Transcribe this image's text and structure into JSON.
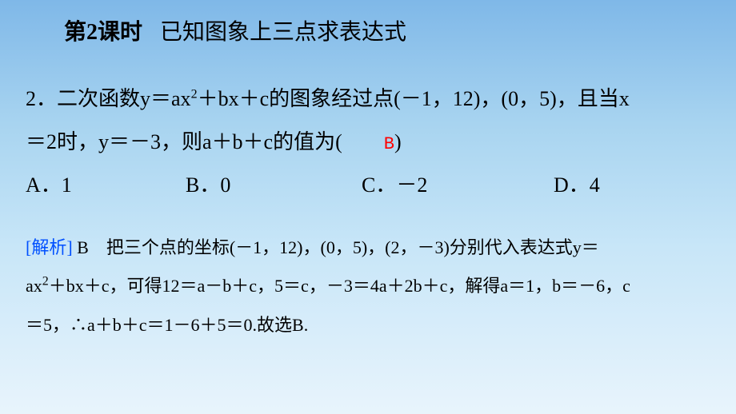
{
  "header": {
    "lesson_label": "第2课时",
    "lesson_title": "已知图象上三点求表达式"
  },
  "question": {
    "number": "2．",
    "text_part1": "二次函数y＝ax",
    "sup1": "2",
    "text_part2": "＋bx＋c的图象经过点(－1，12)，(0，5)，且当x",
    "text_line2": "＝2时，y＝－3，则a＋b＋c的值为(　　",
    "answer": "B",
    "text_close": ")"
  },
  "options": {
    "a": "A．1",
    "b": "B．0",
    "c": "C．－2",
    "d": "D．4"
  },
  "explanation": {
    "label": "[解析]",
    "letter": " B　",
    "text_part1": "把三个点的坐标(－1，12)，(0，5)，(2，－3)分别代入表达式y＝",
    "text_line2_pre": "ax",
    "sup": "2",
    "text_line2_post": "＋bx＋c，可得12＝a－b＋c，5＝c，－3＝4a＋2b＋c，解得a＝1，b＝－6，c",
    "text_line3": "＝5，∴a＋b＋c＝1－6＋5＝0.故选B."
  },
  "colors": {
    "gradient_top": "#7fb8e8",
    "gradient_mid1": "#a8d4f0",
    "gradient_mid2": "#c8e6f8",
    "gradient_bottom": "#e8f4fc",
    "text": "#000000",
    "answer": "#ff0000",
    "explain_label": "#0050ff"
  },
  "typography": {
    "header_fontsize": 28,
    "question_fontsize": 26,
    "explanation_fontsize": 22,
    "sup_fontsize": 16,
    "font_family": "SimSun"
  }
}
